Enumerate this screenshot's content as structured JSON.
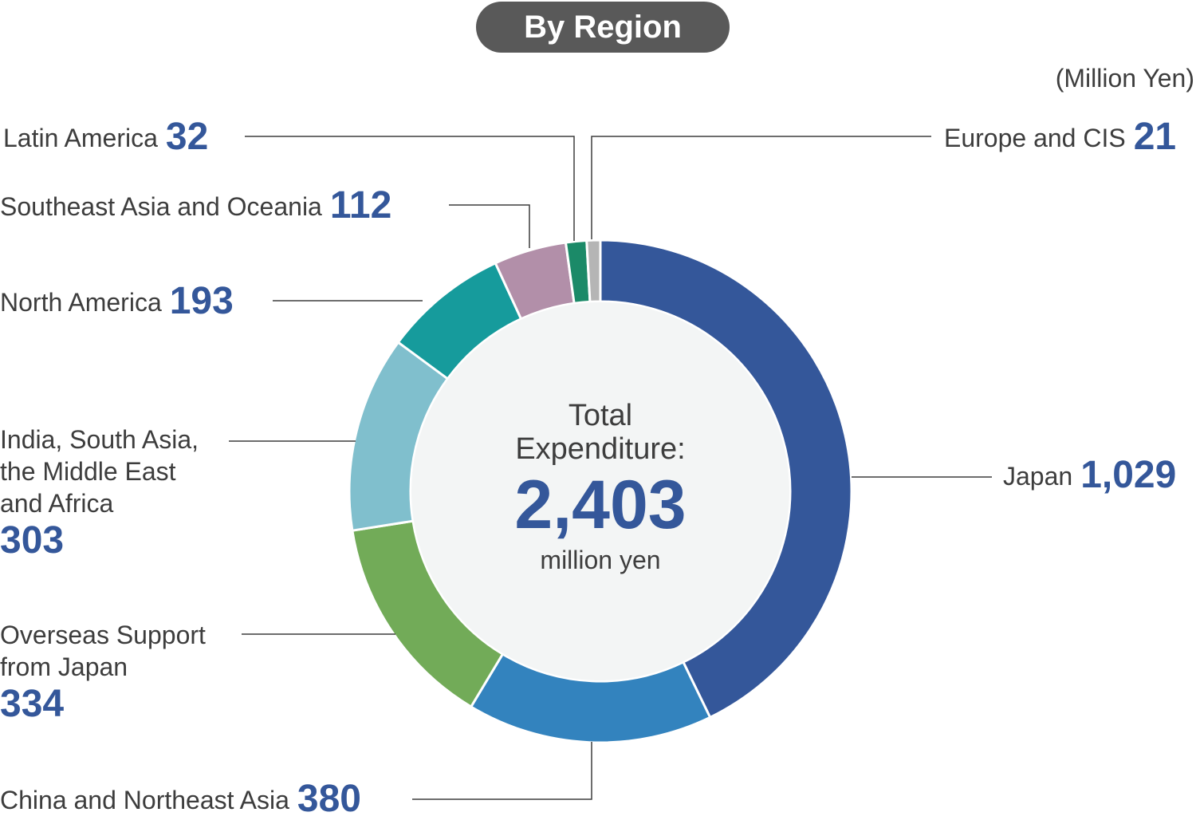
{
  "header": {
    "title": "By Region",
    "unit": "(Million Yen)"
  },
  "center": {
    "label_line1": "Total",
    "label_line2": "Expenditure:",
    "total": "2,403",
    "unit": "million yen"
  },
  "labels": {
    "latin_america": {
      "name": "Latin America",
      "value": "32"
    },
    "southeast_asia": {
      "name": "Southeast Asia and Oceania",
      "value": "112"
    },
    "north_america": {
      "name": "North America",
      "value": "193"
    },
    "india": {
      "line1": "India, South Asia,",
      "line2": "the Middle East",
      "line3": "and Africa",
      "value": "303"
    },
    "overseas": {
      "line1": "Overseas Support",
      "line2": "from Japan",
      "value": "334"
    },
    "china": {
      "name": "China and Northeast Asia",
      "value": "380"
    },
    "japan": {
      "name": "Japan",
      "value": "1,029"
    },
    "europe": {
      "name": "Europe and CIS",
      "value": "21"
    }
  },
  "chart_data": {
    "type": "pie",
    "variant": "donut",
    "title": "By Region",
    "unit": "Million Yen",
    "total": 2403,
    "start": "12 o'clock, clockwise",
    "slices": [
      {
        "name": "Japan",
        "value": 1029,
        "color": "#34579a"
      },
      {
        "name": "China and Northeast Asia",
        "value": 380,
        "color": "#3383be"
      },
      {
        "name": "Overseas Support from Japan",
        "value": 334,
        "color": "#72ab58"
      },
      {
        "name": "India, South Asia, the Middle East and Africa",
        "value": 303,
        "color": "#80bfcd"
      },
      {
        "name": "North America",
        "value": 193,
        "color": "#169b9c"
      },
      {
        "name": "Southeast Asia and Oceania",
        "value": 112,
        "color": "#b28fa9"
      },
      {
        "name": "Latin America",
        "value": 32,
        "color": "#1b8a68"
      },
      {
        "name": "Europe and CIS",
        "value": 21,
        "color": "#b5b5b5"
      }
    ],
    "center_fill": "#f3f5f5"
  }
}
